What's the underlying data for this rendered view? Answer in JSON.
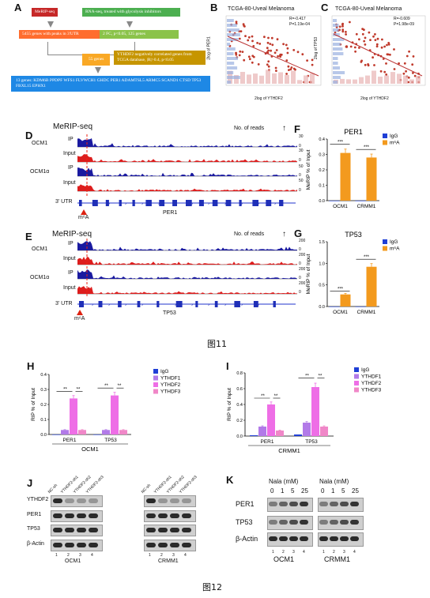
{
  "panel_labels": {
    "A": "A",
    "B": "B",
    "C": "C",
    "D": "D",
    "E": "E",
    "F": "F",
    "G": "G",
    "H": "H",
    "I": "I",
    "J": "J",
    "K": "K"
  },
  "flowchart": {
    "merip": "MeRIP-seq",
    "rnaseq": "RNA-seq, treated with glycolysis inhibitors",
    "peaks": "5455 genes with peaks in 3'UTR",
    "fc": "2 FC, p<0.05, 125 genes",
    "genes55": "55 genes",
    "ythdf2corr": "YTHDF2 negatively correlated genes from TCGA database, |R|>0.4, p<0.05",
    "final": "13 genes: KDM6B PPDPF WFS1 FLVWCH1 GHDC PER1 ADAMTSL5 ARMC5 SCAND1 CTSD TP53 FBXL15 EPHX1"
  },
  "scatter_B": {
    "title": "TCGA-80-Uveal Melanoma",
    "r": "R=-0.417",
    "p": "P=1.19e-04",
    "xlabel": "2log of YTHDF2",
    "ylabel": "2log of PER1"
  },
  "scatter_C": {
    "title": "TCGA-80-Uveal Melanoma",
    "r": "R=-0.609",
    "p": "P=1.98e-09",
    "xlabel": "2log of YTHDF2",
    "ylabel": "2log of TP53"
  },
  "track_D": {
    "title": "MeRIP-seq",
    "reads": "No. of reads",
    "cell1": "OCM1",
    "cell2": "OCM1α",
    "ip": "IP",
    "input": "Input",
    "ticks": [
      "30",
      "0",
      "30",
      "0",
      "50",
      "0",
      "50",
      "0"
    ],
    "utr": "3' UTR",
    "gene": "PER1",
    "m6a": "m⁶A"
  },
  "track_E": {
    "title": "MeRIP-seq",
    "reads": "No. of reads",
    "cell1": "OCM1",
    "cell2": "OCM1α",
    "ip": "IP",
    "input": "Input",
    "ticks": [
      "200",
      "0",
      "200",
      "0",
      "200",
      "0",
      "200",
      "0"
    ],
    "utr": "3' UTR",
    "gene": "TP53",
    "m6a": "m⁶A"
  },
  "caption1": "图11",
  "caption2": "图12",
  "blot_J": {
    "label": "J",
    "rows": [
      "YTHDF2",
      "PER1",
      "TP53",
      "β-Actin"
    ],
    "lanes": [
      "NC-sh",
      "YTHDF2-sh1",
      "YTHDF2-sh2",
      "YTHDF2-sh3"
    ],
    "cells": [
      "OCM1",
      "CRMM1"
    ],
    "nums": [
      "1",
      "2",
      "3",
      "4"
    ]
  },
  "blot_K": {
    "label": "K",
    "header": "Nala (mM)",
    "doses": [
      "0",
      "1",
      "5",
      "25"
    ],
    "rows": [
      "PER1",
      "TP53",
      "β-Actin"
    ],
    "cells": [
      "OCM1",
      "CRMM1"
    ],
    "nums": [
      "1",
      "2",
      "3",
      "4"
    ]
  },
  "chart_data": [
    {
      "id": "F",
      "type": "bar",
      "title": "PER1",
      "ylabel": "MeRIP % of Input",
      "categories": [
        "OCM1",
        "CRMM1"
      ],
      "ylim": [
        0,
        0.4
      ],
      "yticks": [
        "0.0",
        "0.1",
        "0.2",
        "0.3",
        "0.4"
      ],
      "series": [
        {
          "name": "IgG",
          "color": "#1f3fd6",
          "values": [
            0.0,
            0.0
          ]
        },
        {
          "name": "m⁶A",
          "color": "#f39a1e",
          "values": [
            0.31,
            0.28
          ]
        }
      ],
      "sig": "***"
    },
    {
      "id": "G",
      "type": "bar",
      "title": "TP53",
      "ylabel": "MeRIP % of Input",
      "categories": [
        "OCM1",
        "CRMM1"
      ],
      "ylim": [
        0,
        1.5
      ],
      "yticks": [
        "0.0",
        "0.5",
        "1.0",
        "1.5"
      ],
      "series": [
        {
          "name": "IgG",
          "color": "#1f3fd6",
          "values": [
            0.0,
            0.0
          ]
        },
        {
          "name": "m⁶A",
          "color": "#f39a1e",
          "values": [
            0.28,
            0.92
          ]
        }
      ],
      "sig": "***"
    },
    {
      "id": "H",
      "type": "bar",
      "ylabel": "RIP % of Input",
      "xlabel": "OCM1",
      "categories": [
        "PER1",
        "TP53"
      ],
      "ylim": [
        0,
        0.4
      ],
      "yticks": [
        "0.0",
        "0.1",
        "0.2",
        "0.3",
        "0.4"
      ],
      "series": [
        {
          "name": "IgG",
          "color": "#1f3fd6",
          "values": [
            0.0,
            0.0
          ]
        },
        {
          "name": "YTHDF1",
          "color": "#b27ae8",
          "values": [
            0.03,
            0.03
          ]
        },
        {
          "name": "YTHDF2",
          "color": "#ee6ee6",
          "values": [
            0.24,
            0.26
          ]
        },
        {
          "name": "YTHDF3",
          "color": "#f087c8",
          "values": [
            0.03,
            0.03
          ]
        }
      ],
      "sig": "**"
    },
    {
      "id": "I",
      "type": "bar",
      "ylabel": "RIP % of Input",
      "xlabel": "CRMM1",
      "categories": [
        "PER1",
        "TP53"
      ],
      "ylim": [
        0,
        0.8
      ],
      "yticks": [
        "0.0",
        "0.2",
        "0.4",
        "0.6",
        "0.8"
      ],
      "series": [
        {
          "name": "IgG",
          "color": "#1f3fd6",
          "values": [
            0.01,
            0.02
          ]
        },
        {
          "name": "YTHDF1",
          "color": "#b27ae8",
          "values": [
            0.12,
            0.17
          ]
        },
        {
          "name": "YTHDF2",
          "color": "#ee6ee6",
          "values": [
            0.4,
            0.62
          ]
        },
        {
          "name": "YTHDF3",
          "color": "#f087c8",
          "values": [
            0.07,
            0.12
          ]
        }
      ],
      "sig": "**"
    }
  ]
}
